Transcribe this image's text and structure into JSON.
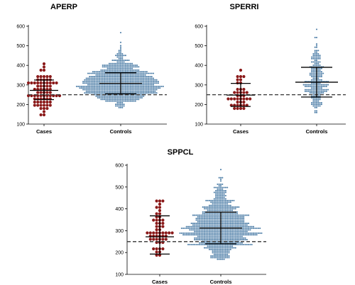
{
  "colors": {
    "cases": "#8b1a1a",
    "controls": "#4f7fa8",
    "axis": "#000000",
    "threshold": "#333333"
  },
  "chart_data": [
    {
      "type": "scatter",
      "title": "APERP",
      "categories": [
        "Cases",
        "Controls"
      ],
      "ylim": [
        100,
        600
      ],
      "yticks": [
        100,
        200,
        300,
        400,
        500,
        600
      ],
      "threshold": 250,
      "series": [
        {
          "category": "Cases",
          "n": 75,
          "mean": 272,
          "sd_low": 225,
          "sd_high": 325,
          "min": 145,
          "max": 400
        },
        {
          "category": "Controls",
          "n": 900,
          "mean": 308,
          "sd_low": 255,
          "sd_high": 362,
          "min": 185,
          "max": 570
        }
      ]
    },
    {
      "type": "scatter",
      "title": "SPERRI",
      "categories": [
        "Cases",
        "Controls"
      ],
      "ylim": [
        100,
        600
      ],
      "yticks": [
        100,
        200,
        300,
        400,
        500,
        600
      ],
      "threshold": 250,
      "series": [
        {
          "category": "Cases",
          "n": 40,
          "mean": 248,
          "sd_low": 190,
          "sd_high": 308,
          "min": 180,
          "max": 370
        },
        {
          "category": "Controls",
          "n": 260,
          "mean": 314,
          "sd_low": 238,
          "sd_high": 390,
          "min": 160,
          "max": 585
        }
      ]
    },
    {
      "type": "scatter",
      "title": "SPPCL",
      "categories": [
        "Cases",
        "Controls"
      ],
      "ylim": [
        100,
        600
      ],
      "yticks": [
        100,
        200,
        300,
        400,
        500,
        600
      ],
      "threshold": 250,
      "series": [
        {
          "category": "Cases",
          "n": 55,
          "mean": 272,
          "sd_low": 193,
          "sd_high": 368,
          "min": 190,
          "max": 440
        },
        {
          "category": "Controls",
          "n": 1000,
          "mean": 312,
          "sd_low": 240,
          "sd_high": 385,
          "min": 170,
          "max": 580
        }
      ]
    }
  ]
}
